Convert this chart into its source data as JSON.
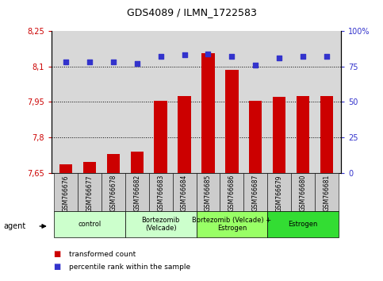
{
  "title": "GDS4089 / ILMN_1722583",
  "samples": [
    "GSM766676",
    "GSM766677",
    "GSM766678",
    "GSM766682",
    "GSM766683",
    "GSM766684",
    "GSM766685",
    "GSM766686",
    "GSM766687",
    "GSM766679",
    "GSM766680",
    "GSM766681"
  ],
  "bar_values": [
    7.685,
    7.695,
    7.73,
    7.74,
    7.955,
    7.975,
    8.155,
    8.085,
    7.955,
    7.97,
    7.975,
    7.975
  ],
  "percentile_values": [
    78,
    78,
    78,
    77,
    82,
    83,
    84,
    82,
    76,
    81,
    82,
    82
  ],
  "bar_color": "#cc0000",
  "dot_color": "#3333cc",
  "ylim_left": [
    7.65,
    8.25
  ],
  "ylim_right": [
    0,
    100
  ],
  "yticks_left": [
    7.65,
    7.8,
    7.95,
    8.1,
    8.25
  ],
  "yticks_right": [
    0,
    25,
    50,
    75,
    100
  ],
  "ytick_labels_left": [
    "7,65",
    "7,8",
    "7,95",
    "8,1",
    "8,25"
  ],
  "ytick_labels_right": [
    "0",
    "25",
    "50",
    "75",
    "100%"
  ],
  "hlines": [
    7.8,
    7.95,
    8.1
  ],
  "groups": [
    {
      "label": "control",
      "start": 0,
      "end": 3,
      "color": "#ccffcc"
    },
    {
      "label": "Bortezomib\n(Velcade)",
      "start": 3,
      "end": 6,
      "color": "#ccffcc"
    },
    {
      "label": "Bortezomib (Velcade) +\nEstrogen",
      "start": 6,
      "end": 9,
      "color": "#99ff66"
    },
    {
      "label": "Estrogen",
      "start": 9,
      "end": 12,
      "color": "#33dd33"
    }
  ],
  "agent_label": "agent",
  "legend_bar_label": "transformed count",
  "legend_dot_label": "percentile rank within the sample",
  "bar_baseline": 7.65,
  "plot_bg": "#d8d8d8",
  "xtick_bg": "#cccccc"
}
